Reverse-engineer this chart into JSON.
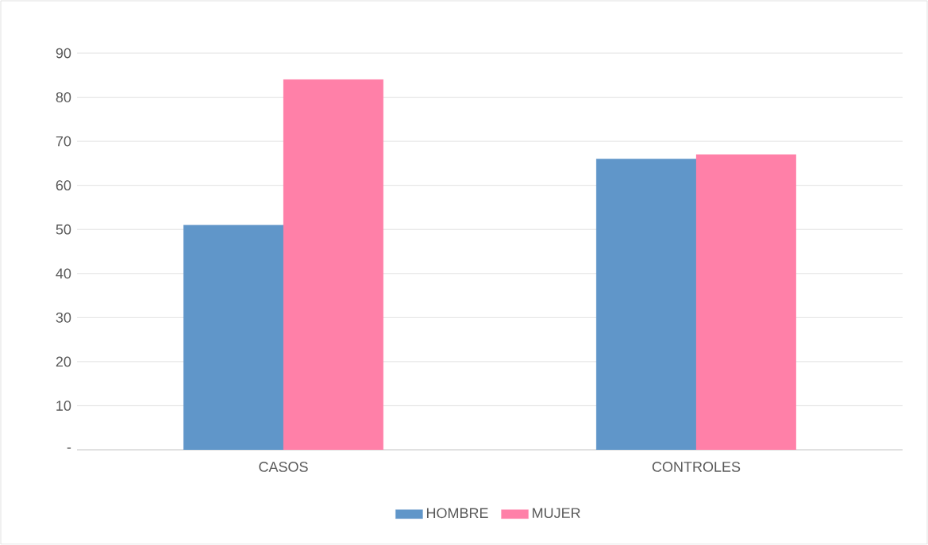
{
  "chart_data": {
    "type": "bar",
    "categories": [
      "CASOS",
      "CONTROLES"
    ],
    "series": [
      {
        "name": "HOMBRE",
        "color": "#6096c9",
        "values": [
          51,
          66
        ]
      },
      {
        "name": "MUJER",
        "color": "#ff80a8",
        "values": [
          84,
          67
        ]
      }
    ],
    "ylim": [
      0,
      90
    ],
    "yticks": [
      {
        "value": 0,
        "label": "-"
      },
      10,
      20,
      30,
      40,
      50,
      60,
      70,
      80,
      90
    ],
    "grid": "y",
    "legend": "bottom"
  }
}
